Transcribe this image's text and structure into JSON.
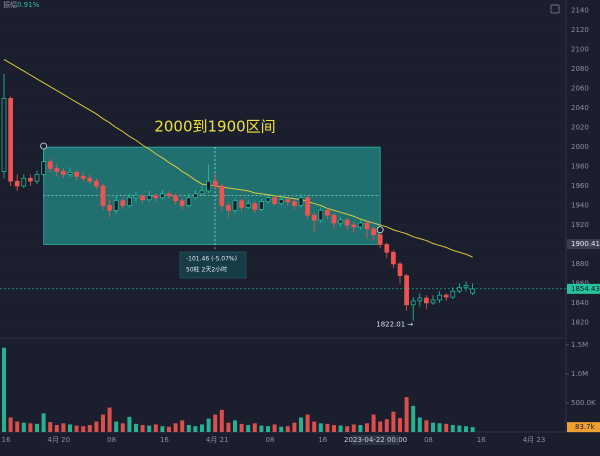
{
  "chart_data": {
    "type": "candlestick",
    "amplitude_label": "振幅",
    "amplitude": "0.91%",
    "annotation": "2000到1900区间",
    "range_box": {
      "from": 2000,
      "to": 1900
    },
    "measure": {
      "change": "-101.46 (-5.07%)",
      "span": "50柱 2天2小时"
    },
    "up_color": "#26c29e",
    "down_color": "#ef5350",
    "ylim": [
      1805,
      2151
    ],
    "yticks": [
      1820,
      1840,
      1860,
      1880,
      1900,
      1920,
      1940,
      1960,
      1980,
      2000,
      2020,
      2040,
      2060,
      2080,
      2100,
      2120,
      2140
    ],
    "xticks": [
      {
        "value": 0,
        "label": "16"
      },
      {
        "value": 8,
        "label": "4月 20"
      },
      {
        "value": 16,
        "label": "08"
      },
      {
        "value": 24,
        "label": "16"
      },
      {
        "value": 32,
        "label": "4月 21"
      },
      {
        "value": 40,
        "label": "08"
      },
      {
        "value": 48,
        "label": "16"
      },
      {
        "value": 56,
        "label": "2023-04-22 00:00"
      },
      {
        "value": 64,
        "label": "08"
      },
      {
        "value": 72,
        "label": "16"
      },
      {
        "value": 80,
        "label": "4月 23"
      }
    ],
    "candles": [
      [
        1975,
        2075,
        1968,
        2050
      ],
      [
        2050,
        2052,
        1960,
        1965
      ],
      [
        1965,
        1972,
        1955,
        1960
      ],
      [
        1960,
        1972,
        1958,
        1968
      ],
      [
        1968,
        1972,
        1960,
        1965
      ],
      [
        1965,
        1976,
        1962,
        1972
      ],
      [
        1972,
        1998,
        1970,
        1985
      ],
      [
        1985,
        1988,
        1974,
        1978
      ],
      [
        1978,
        1982,
        1970,
        1975
      ],
      [
        1975,
        1978,
        1968,
        1972
      ],
      [
        1972,
        1979,
        1969,
        1974
      ],
      [
        1974,
        1976,
        1966,
        1970
      ],
      [
        1970,
        1974,
        1964,
        1968
      ],
      [
        1968,
        1972,
        1962,
        1965
      ],
      [
        1965,
        1968,
        1956,
        1960
      ],
      [
        1960,
        1962,
        1936,
        1940
      ],
      [
        1940,
        1946,
        1928,
        1935
      ],
      [
        1935,
        1950,
        1932,
        1945
      ],
      [
        1945,
        1948,
        1936,
        1940
      ],
      [
        1940,
        1952,
        1938,
        1948
      ],
      [
        1948,
        1954,
        1944,
        1950
      ],
      [
        1950,
        1952,
        1942,
        1946
      ],
      [
        1946,
        1955,
        1944,
        1950
      ],
      [
        1950,
        1953,
        1944,
        1948
      ],
      [
        1948,
        1956,
        1946,
        1952
      ],
      [
        1952,
        1955,
        1947,
        1950
      ],
      [
        1950,
        1952,
        1941,
        1945
      ],
      [
        1945,
        1948,
        1936,
        1940
      ],
      [
        1940,
        1952,
        1938,
        1948
      ],
      [
        1948,
        1956,
        1946,
        1952
      ],
      [
        1952,
        1960,
        1950,
        1955
      ],
      [
        1955,
        1982,
        1953,
        1965
      ],
      [
        1965,
        1972,
        1956,
        1960
      ],
      [
        1960,
        1962,
        1935,
        1940
      ],
      [
        1940,
        1944,
        1928,
        1935
      ],
      [
        1935,
        1948,
        1932,
        1945
      ],
      [
        1945,
        1947,
        1934,
        1938
      ],
      [
        1938,
        1946,
        1936,
        1942
      ],
      [
        1942,
        1944,
        1932,
        1936
      ],
      [
        1936,
        1947,
        1934,
        1944
      ],
      [
        1944,
        1952,
        1942,
        1948
      ],
      [
        1948,
        1950,
        1940,
        1942
      ],
      [
        1942,
        1950,
        1940,
        1946
      ],
      [
        1946,
        1948,
        1940,
        1944
      ],
      [
        1944,
        1946,
        1936,
        1940
      ],
      [
        1940,
        1952,
        1938,
        1948
      ],
      [
        1948,
        1950,
        1926,
        1930
      ],
      [
        1930,
        1933,
        1912,
        1925
      ],
      [
        1925,
        1938,
        1922,
        1935
      ],
      [
        1935,
        1937,
        1926,
        1930
      ],
      [
        1930,
        1932,
        1916,
        1922
      ],
      [
        1922,
        1928,
        1918,
        1925
      ],
      [
        1925,
        1927,
        1915,
        1920
      ],
      [
        1920,
        1923,
        1912,
        1918
      ],
      [
        1918,
        1925,
        1915,
        1922
      ],
      [
        1922,
        1924,
        1906,
        1916
      ],
      [
        1916,
        1918,
        1904,
        1910
      ],
      [
        1910,
        1912,
        1896,
        1900
      ],
      [
        1900,
        1902,
        1886,
        1892
      ],
      [
        1892,
        1894,
        1876,
        1880
      ],
      [
        1880,
        1882,
        1860,
        1868
      ],
      [
        1868,
        1870,
        1832,
        1838
      ],
      [
        1838,
        1846,
        1822.01,
        1842
      ],
      [
        1842,
        1850,
        1836,
        1845
      ],
      [
        1845,
        1848,
        1834,
        1840
      ],
      [
        1840,
        1848,
        1838,
        1843
      ],
      [
        1843,
        1852,
        1840,
        1848
      ],
      [
        1848,
        1850,
        1842,
        1846
      ],
      [
        1846,
        1856,
        1844,
        1852
      ],
      [
        1852,
        1860,
        1850,
        1856
      ],
      [
        1856,
        1862,
        1852,
        1858
      ],
      [
        1850,
        1860,
        1848,
        1854.43
      ]
    ],
    "ma": {
      "color": "#d8c93a",
      "values": [
        2090,
        2086,
        2082,
        2078,
        2074,
        2070,
        2066,
        2062,
        2058,
        2054,
        2050,
        2046,
        2042,
        2038,
        2034,
        2029,
        2025,
        2020,
        2016,
        2011,
        2007,
        2002,
        1998,
        1993,
        1989,
        1984,
        1980,
        1975,
        1971,
        1966,
        1962,
        1961,
        1960,
        1959,
        1958,
        1957,
        1956,
        1955,
        1953,
        1952,
        1951,
        1950,
        1949,
        1948,
        1947,
        1946,
        1944,
        1942,
        1940,
        1937,
        1935,
        1933,
        1931,
        1929,
        1926,
        1924,
        1922,
        1920,
        1918,
        1915,
        1913,
        1911,
        1908,
        1906,
        1904,
        1901,
        1899,
        1897,
        1894,
        1892,
        1890,
        1887
      ]
    },
    "ma_price": 1900.41,
    "volume": {
      "vlim": [
        0,
        1600000
      ],
      "vticks": [
        {
          "value": 1500000,
          "label": "1.5M"
        },
        {
          "value": 1000000,
          "label": "1.0M"
        },
        {
          "value": 500000,
          "label": "500.0K"
        }
      ],
      "values": [
        1450000,
        250000,
        180000,
        160000,
        150000,
        140000,
        320000,
        170000,
        120000,
        150000,
        130000,
        110000,
        100000,
        120000,
        180000,
        300000,
        420000,
        180000,
        150000,
        260000,
        140000,
        120000,
        110000,
        130000,
        100000,
        90000,
        150000,
        200000,
        120000,
        100000,
        130000,
        230000,
        300000,
        380000,
        160000,
        200000,
        140000,
        120000,
        150000,
        110000,
        100000,
        130000,
        90000,
        100000,
        160000,
        250000,
        300000,
        180000,
        150000,
        140000,
        120000,
        110000,
        100000,
        130000,
        120000,
        150000,
        300000,
        180000,
        220000,
        350000,
        240000,
        600000,
        450000,
        250000,
        200000,
        160000,
        150000,
        140000,
        120000,
        110000,
        100000,
        83700
      ],
      "last_label": "83.7k"
    }
  }
}
